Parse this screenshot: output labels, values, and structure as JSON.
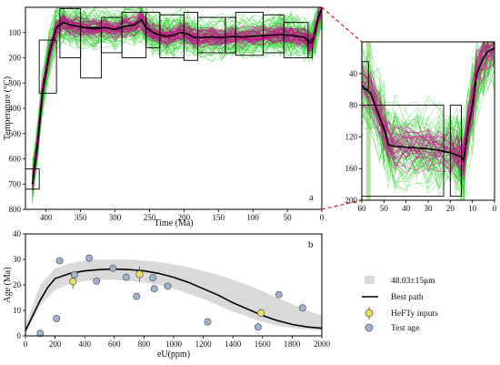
{
  "colors": {
    "good_paths": "#2bd22b",
    "acceptable_paths": "#c2148a",
    "best_path": "#000000",
    "constraint_box": "#000000",
    "connector": "#cc2222",
    "envelope": "#d9d9d9",
    "hefty_marker": "#e8e060",
    "test_marker": "#9fb3cf",
    "highlight_band": "#b6e2a0"
  },
  "chart_data": [
    {
      "id": "thermal-history",
      "type": "line",
      "panel_label": "a",
      "xlabel": "Time (Ma)",
      "ylabel": "Temperature (°C)",
      "xlim": [
        430,
        0
      ],
      "ylim": [
        800,
        0
      ],
      "x_ticks": [
        "400",
        "350",
        "300",
        "250",
        "200",
        "150",
        "100",
        "50",
        "0"
      ],
      "y_ticks": [
        "100",
        "200",
        "300",
        "400",
        "500",
        "600",
        "700",
        "800"
      ],
      "best_path": {
        "x": [
          420,
          412,
          405,
          395,
          385,
          375,
          365,
          355,
          345,
          330,
          315,
          300,
          285,
          272,
          262,
          255,
          245,
          235,
          225,
          215,
          205,
          195,
          185,
          175,
          160,
          145,
          130,
          115,
          100,
          85,
          70,
          60,
          52,
          45,
          35,
          25,
          18,
          14,
          10,
          5,
          0
        ],
        "y": [
          700,
          530,
          330,
          180,
          80,
          60,
          70,
          75,
          80,
          85,
          80,
          88,
          75,
          70,
          50,
          80,
          100,
          110,
          115,
          110,
          100,
          105,
          120,
          120,
          118,
          120,
          115,
          118,
          115,
          112,
          110,
          108,
          110,
          112,
          115,
          120,
          140,
          140,
          100,
          40,
          5
        ]
      },
      "constraint_boxes": [
        {
          "t": [
            410,
            430
          ],
          "T": [
            640,
            720
          ]
        },
        {
          "t": [
            385,
            410
          ],
          "T": [
            130,
            340
          ]
        },
        {
          "t": [
            350,
            380
          ],
          "T": [
            5,
            200
          ]
        },
        {
          "t": [
            320,
            350
          ],
          "T": [
            80,
            280
          ]
        },
        {
          "t": [
            290,
            320
          ],
          "T": [
            40,
            180
          ]
        },
        {
          "t": [
            255,
            290
          ],
          "T": [
            20,
            200
          ]
        },
        {
          "t": [
            235,
            255
          ],
          "T": [
            20,
            160
          ]
        },
        {
          "t": [
            200,
            235
          ],
          "T": [
            30,
            200
          ]
        },
        {
          "t": [
            180,
            200
          ],
          "T": [
            20,
            210
          ]
        },
        {
          "t": [
            140,
            180
          ],
          "T": [
            40,
            180
          ]
        },
        {
          "t": [
            125,
            140
          ],
          "T": [
            40,
            180
          ]
        },
        {
          "t": [
            85,
            125
          ],
          "T": [
            20,
            190
          ]
        },
        {
          "t": [
            55,
            85
          ],
          "T": [
            30,
            180
          ]
        },
        {
          "t": [
            20,
            55
          ],
          "T": [
            60,
            200
          ]
        },
        {
          "t": [
            14,
            20
          ],
          "T": [
            130,
            200
          ]
        }
      ]
    },
    {
      "id": "thermal-history-zoom",
      "type": "line",
      "xlim": [
        60,
        0
      ],
      "ylim": [
        200,
        0
      ],
      "x_ticks": [
        "60",
        "50",
        "40",
        "30",
        "20",
        "10",
        "0"
      ],
      "y_ticks": [
        "40",
        "80",
        "120",
        "160",
        "200"
      ],
      "best_path": {
        "x": [
          60,
          56,
          52,
          50,
          48,
          45,
          40,
          35,
          30,
          25,
          20,
          17,
          15,
          14,
          12,
          10,
          8,
          5,
          3,
          0
        ],
        "y": [
          55,
          65,
          95,
          110,
          130,
          132,
          133,
          134,
          135,
          137,
          140,
          143,
          145,
          150,
          110,
          80,
          40,
          20,
          12,
          8
        ]
      },
      "constraint_boxes": [
        {
          "t": [
            57,
            60
          ],
          "T": [
            25,
            60
          ]
        },
        {
          "t": [
            23,
            60
          ],
          "T": [
            80,
            195
          ]
        },
        {
          "t": [
            15,
            20
          ],
          "T": [
            80,
            195
          ]
        }
      ],
      "highlight_band": [
        56,
        58
      ]
    },
    {
      "id": "age-eu",
      "type": "scatter",
      "panel_label": "b",
      "xlabel": "eU(ppm)",
      "ylabel": "Age (Ma)",
      "xlim": [
        0,
        2000
      ],
      "ylim": [
        0,
        40
      ],
      "x_ticks": [
        "0",
        "200",
        "400",
        "600",
        "800",
        "1000",
        "1200",
        "1400",
        "1600",
        "1800",
        "2000"
      ],
      "y_ticks": [
        "0",
        "10",
        "20",
        "30",
        "40"
      ],
      "envelope_label": "48.03±15μm",
      "envelope": {
        "x": [
          0,
          100,
          200,
          300,
          400,
          500,
          600,
          700,
          800,
          900,
          1000,
          1100,
          1200,
          1300,
          1400,
          1500,
          1600,
          1700,
          1800,
          1900,
          2000
        ],
        "upper": [
          4,
          20,
          26.5,
          28.5,
          29.5,
          30,
          30,
          30,
          29.5,
          29,
          28,
          27,
          25.5,
          24,
          22,
          20,
          17.5,
          15,
          12.5,
          10,
          8
        ],
        "lower": [
          1,
          12,
          18,
          20.5,
          21.5,
          22,
          22,
          21.5,
          21,
          20,
          18.5,
          16.5,
          14.5,
          12,
          9.5,
          7.5,
          5.5,
          4,
          3,
          2.5,
          2
        ]
      },
      "best_path_label": "Best path",
      "best_path": {
        "x": [
          0,
          50,
          100,
          150,
          200,
          300,
          400,
          500,
          600,
          700,
          800,
          900,
          1000,
          1100,
          1200,
          1300,
          1400,
          1500,
          1600,
          1700,
          1800,
          1900,
          2000
        ],
        "y": [
          2,
          8,
          14,
          19,
          22.5,
          24.5,
          25.5,
          26,
          26.2,
          26,
          25.5,
          24.5,
          23,
          21,
          18.5,
          16,
          13,
          10.5,
          8,
          6,
          4.5,
          3.5,
          3
        ]
      },
      "hefty_label": "HeFTy inputs",
      "hefty_inputs": [
        {
          "x": 320,
          "y": 21.3,
          "err": 2.8
        },
        {
          "x": 770,
          "y": 24.2,
          "err": 3.0
        },
        {
          "x": 1590,
          "y": 9.0,
          "err": 1.5
        }
      ],
      "test_label": "Test age",
      "test_ages": [
        {
          "x": 100,
          "y": 1.0
        },
        {
          "x": 210,
          "y": 6.8
        },
        {
          "x": 230,
          "y": 29.5
        },
        {
          "x": 330,
          "y": 24.0
        },
        {
          "x": 430,
          "y": 30.5
        },
        {
          "x": 480,
          "y": 21.5
        },
        {
          "x": 590,
          "y": 26.5
        },
        {
          "x": 680,
          "y": 23.0
        },
        {
          "x": 750,
          "y": 15.5
        },
        {
          "x": 860,
          "y": 22.8
        },
        {
          "x": 870,
          "y": 18.5
        },
        {
          "x": 960,
          "y": 19.5
        },
        {
          "x": 1230,
          "y": 5.5
        },
        {
          "x": 1570,
          "y": 3.5
        },
        {
          "x": 1710,
          "y": 16.2
        },
        {
          "x": 1870,
          "y": 11.0
        }
      ]
    }
  ]
}
